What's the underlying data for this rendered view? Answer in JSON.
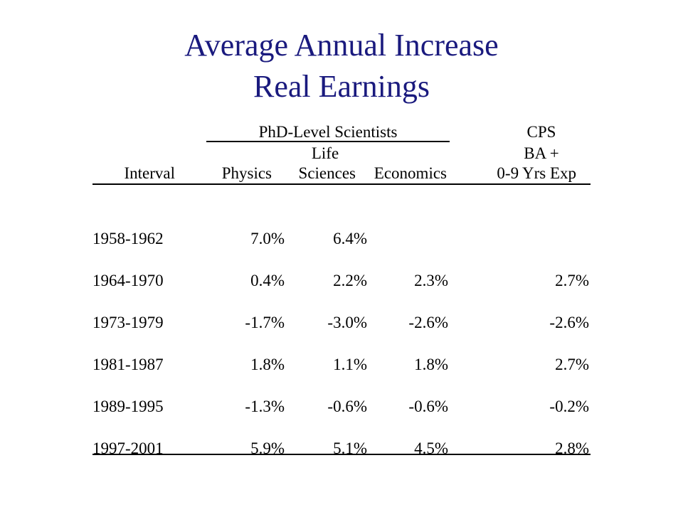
{
  "title": {
    "line1": "Average Annual Increase",
    "line2": "Real Earnings"
  },
  "table": {
    "group_headers": {
      "phd": "PhD-Level Scientists",
      "cps": "CPS"
    },
    "subheaders": {
      "life": "Life",
      "ba_plus": "BA +"
    },
    "columns": {
      "interval": "Interval",
      "physics": "Physics",
      "life_sciences": "Sciences",
      "economics": "Economics",
      "cps": "0-9 Yrs Exp"
    },
    "rows": [
      {
        "interval": "1958-1962",
        "physics": "7.0%",
        "life_sciences": "6.4%",
        "economics": "",
        "cps": ""
      },
      {
        "interval": "1964-1970",
        "physics": "0.4%",
        "life_sciences": "2.2%",
        "economics": "2.3%",
        "cps": "2.7%"
      },
      {
        "interval": "1973-1979",
        "physics": "-1.7%",
        "life_sciences": "-3.0%",
        "economics": "-2.6%",
        "cps": "-2.6%"
      },
      {
        "interval": "1981-1987",
        "physics": "1.8%",
        "life_sciences": "1.1%",
        "economics": "1.8%",
        "cps": "2.7%"
      },
      {
        "interval": "1989-1995",
        "physics": "-1.3%",
        "life_sciences": "-0.6%",
        "economics": "-0.6%",
        "cps": "-0.2%"
      },
      {
        "interval": "1997-2001",
        "physics": "5.9%",
        "life_sciences": "5.1%",
        "economics": "4.5%",
        "cps": "2.8%"
      }
    ]
  }
}
